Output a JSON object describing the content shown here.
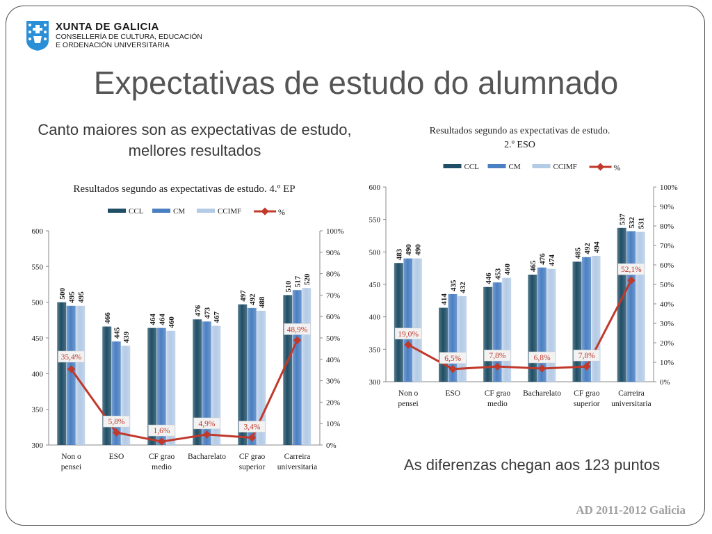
{
  "header": {
    "org_name": "XUNTA DE GALICIA",
    "org_dept_line1": "CONSELLERÍA DE CULTURA, EDUCACIÓN",
    "org_dept_line2": "E ORDENACIÓN UNIVERSITARIA",
    "logo_icon": "galicia-coat-of-arms-icon"
  },
  "slide": {
    "title": "Expectativas de estudo do alumnado",
    "subtitle_left": "Canto maiores son as expectativas de estudo, mellores resultados",
    "subtitle_right": "As diferenzas chegan aos 123 puntos",
    "footer": "AD 2011-2012 Galicia"
  },
  "chart_data": [
    {
      "type": "bar",
      "title": "Resultados segundo as expectativas de estudo. 4.º EP",
      "categories": [
        "Non o pensei",
        "ESO",
        "CF grao medio",
        "Bacharelato",
        "CF grao superior",
        "Carreira universitaria"
      ],
      "series": [
        {
          "name": "CCL",
          "values": [
            500,
            466,
            464,
            476,
            497,
            510
          ],
          "color": "#1f4e66"
        },
        {
          "name": "CM",
          "values": [
            495,
            445,
            464,
            473,
            492,
            517
          ],
          "color": "#4a7fc2"
        },
        {
          "name": "CCIMF",
          "values": [
            495,
            439,
            460,
            467,
            488,
            520
          ],
          "color": "#b4cbe6"
        }
      ],
      "line_series": {
        "name": "%",
        "values": [
          35.4,
          5.8,
          1.6,
          4.9,
          3.4,
          48.9
        ],
        "labels": [
          "35,4%",
          "5,8%",
          "1,6%",
          "4,9%",
          "3,4%",
          "48,9%"
        ],
        "color": "#c0392b"
      },
      "ylim": [
        300,
        600
      ],
      "yticks": [
        300,
        350,
        400,
        450,
        500,
        550,
        600
      ],
      "y2lim": [
        0,
        100
      ],
      "y2ticks": [
        "0%",
        "10%",
        "20%",
        "30%",
        "40%",
        "50%",
        "60%",
        "70%",
        "80%",
        "90%",
        "100%"
      ],
      "legend": "top"
    },
    {
      "type": "bar",
      "title": "Resultados segundo as expectativas de estudo. 2.º ESO",
      "categories": [
        "Non o pensei",
        "ESO",
        "CF grao medio",
        "Bacharelato",
        "CF grao superior",
        "Carreira universitaria"
      ],
      "series": [
        {
          "name": "CCL",
          "values": [
            483,
            414,
            446,
            465,
            485,
            537
          ],
          "color": "#1f4e66"
        },
        {
          "name": "CM",
          "values": [
            490,
            435,
            453,
            476,
            492,
            532
          ],
          "color": "#4a7fc2"
        },
        {
          "name": "CCIMF",
          "values": [
            490,
            432,
            460,
            474,
            494,
            531
          ],
          "color": "#b4cbe6"
        }
      ],
      "line_series": {
        "name": "%",
        "values": [
          19.0,
          6.5,
          7.8,
          6.8,
          7.8,
          52.1
        ],
        "labels": [
          "19,0%",
          "6,5%",
          "7,8%",
          "6,8%",
          "7,8%",
          "52,1%"
        ],
        "color": "#c0392b"
      },
      "ylim": [
        300,
        600
      ],
      "yticks": [
        300,
        350,
        400,
        450,
        500,
        550,
        600
      ],
      "y2lim": [
        0,
        100
      ],
      "y2ticks": [
        "0%",
        "10%",
        "20%",
        "30%",
        "40%",
        "50%",
        "60%",
        "70%",
        "80%",
        "90%",
        "100%"
      ],
      "legend": "top"
    }
  ]
}
